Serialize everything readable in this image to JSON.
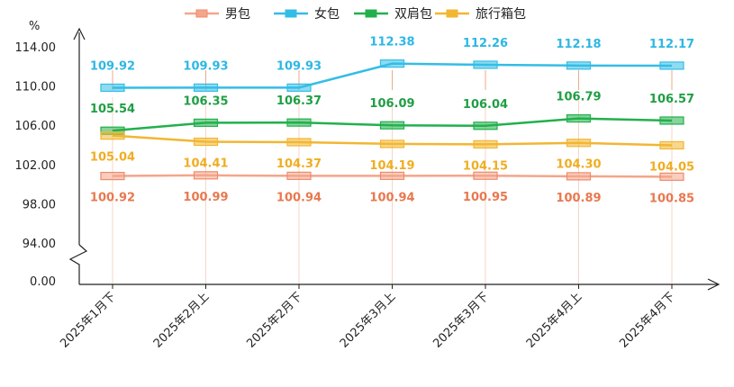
{
  "chart_data": {
    "type": "line",
    "unit_label": "%",
    "categories": [
      "2025年1月下",
      "2025年2月上",
      "2025年2月下",
      "2025年3月上",
      "2025年3月下",
      "2025年4月上",
      "2025年4月下"
    ],
    "y_ticks": [
      "0.00",
      "94.00",
      "98.00",
      "102.00",
      "106.00",
      "110.00",
      "114.00"
    ],
    "y_axis_break": true,
    "ylim": [
      94,
      116
    ],
    "legend_position": "top",
    "series": [
      {
        "name": "男包",
        "color": "#f08a6a",
        "line_color": "#f4a58a",
        "label_color": "#e8784f",
        "label_position": "below",
        "values": [
          100.92,
          100.99,
          100.94,
          100.94,
          100.95,
          100.89,
          100.85
        ],
        "labels": [
          "100.92",
          "100.99",
          "100.94",
          "100.94",
          "100.95",
          "100.89",
          "100.85"
        ]
      },
      {
        "name": "女包",
        "color": "#33bde6",
        "line_color": "#33bde6",
        "label_color": "#2eb7e4",
        "label_position": "above",
        "values": [
          109.92,
          109.93,
          109.93,
          112.38,
          112.26,
          112.18,
          112.17
        ],
        "labels": [
          "109.92",
          "109.93",
          "109.93",
          "112.38",
          "112.26",
          "112.18",
          "112.17"
        ]
      },
      {
        "name": "双肩包",
        "color": "#22b04c",
        "line_color": "#22b04c",
        "label_color": "#1f9e44",
        "label_position": "above",
        "values": [
          105.54,
          106.35,
          106.37,
          106.09,
          106.04,
          106.79,
          106.57
        ],
        "labels": [
          "105.54",
          "106.35",
          "106.37",
          "106.09",
          "106.04",
          "106.79",
          "106.57"
        ]
      },
      {
        "name": "旅行箱包",
        "color": "#f2b632",
        "line_color": "#f2b632",
        "label_color": "#f0ad22",
        "label_position": "below",
        "values": [
          105.04,
          104.41,
          104.37,
          104.19,
          104.15,
          104.3,
          104.05
        ],
        "labels": [
          "105.04",
          "104.41",
          "104.37",
          "104.19",
          "104.15",
          "104.30",
          "104.05"
        ]
      }
    ]
  }
}
